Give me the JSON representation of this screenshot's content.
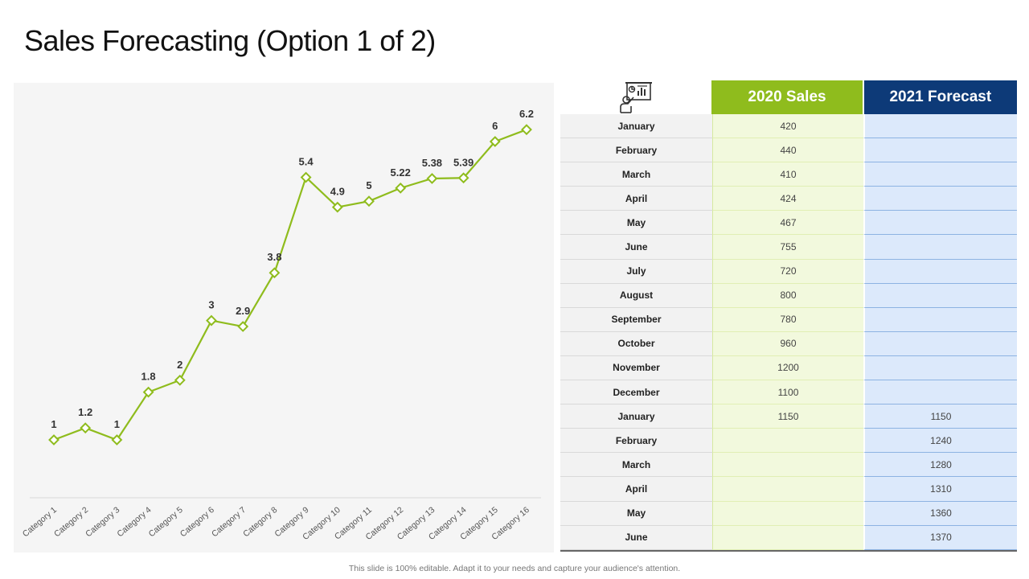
{
  "slide": {
    "title": "Sales Forecasting (Option 1 of 2)",
    "footer": "This slide is 100% editable. Adapt it to your needs and capture your audience's attention."
  },
  "colors": {
    "line": "#8fbc1d",
    "col2020": "#8fbc1d",
    "col2021": "#0d3a78",
    "panel": "#f5f5f5"
  },
  "chart_data": {
    "type": "line",
    "categories": [
      "Category 1",
      "Category 2",
      "Category 3",
      "Category 4",
      "Category 5",
      "Category 6",
      "Category 7",
      "Category 8",
      "Category 9",
      "Category 10",
      "Category 11",
      "Category 12",
      "Category 13",
      "Category 14",
      "Category 15",
      "Category 16"
    ],
    "values": [
      1,
      1.2,
      1,
      1.8,
      2,
      3,
      2.9,
      3.8,
      5.4,
      4.9,
      5,
      5.22,
      5.38,
      5.39,
      6,
      6.2
    ],
    "marker": "diamond",
    "data_labels": true,
    "grid": false,
    "legend": "none"
  },
  "table": {
    "icon": "presentation-icon",
    "headers": [
      "2020 Sales",
      "2021 Forecast"
    ],
    "rows": [
      {
        "month": "January",
        "sales2020": "420",
        "forecast2021": ""
      },
      {
        "month": "February",
        "sales2020": "440",
        "forecast2021": ""
      },
      {
        "month": "March",
        "sales2020": "410",
        "forecast2021": ""
      },
      {
        "month": "April",
        "sales2020": "424",
        "forecast2021": ""
      },
      {
        "month": "May",
        "sales2020": "467",
        "forecast2021": ""
      },
      {
        "month": "June",
        "sales2020": "755",
        "forecast2021": ""
      },
      {
        "month": "July",
        "sales2020": "720",
        "forecast2021": ""
      },
      {
        "month": "August",
        "sales2020": "800",
        "forecast2021": ""
      },
      {
        "month": "September",
        "sales2020": "780",
        "forecast2021": ""
      },
      {
        "month": "October",
        "sales2020": "960",
        "forecast2021": ""
      },
      {
        "month": "November",
        "sales2020": "1200",
        "forecast2021": ""
      },
      {
        "month": "December",
        "sales2020": "1100",
        "forecast2021": ""
      },
      {
        "month": "January",
        "sales2020": "1150",
        "forecast2021": "1150"
      },
      {
        "month": "February",
        "sales2020": "",
        "forecast2021": "1240"
      },
      {
        "month": "March",
        "sales2020": "",
        "forecast2021": "1280"
      },
      {
        "month": "April",
        "sales2020": "",
        "forecast2021": "1310"
      },
      {
        "month": "May",
        "sales2020": "",
        "forecast2021": "1360"
      },
      {
        "month": "June",
        "sales2020": "",
        "forecast2021": "1370"
      }
    ]
  }
}
